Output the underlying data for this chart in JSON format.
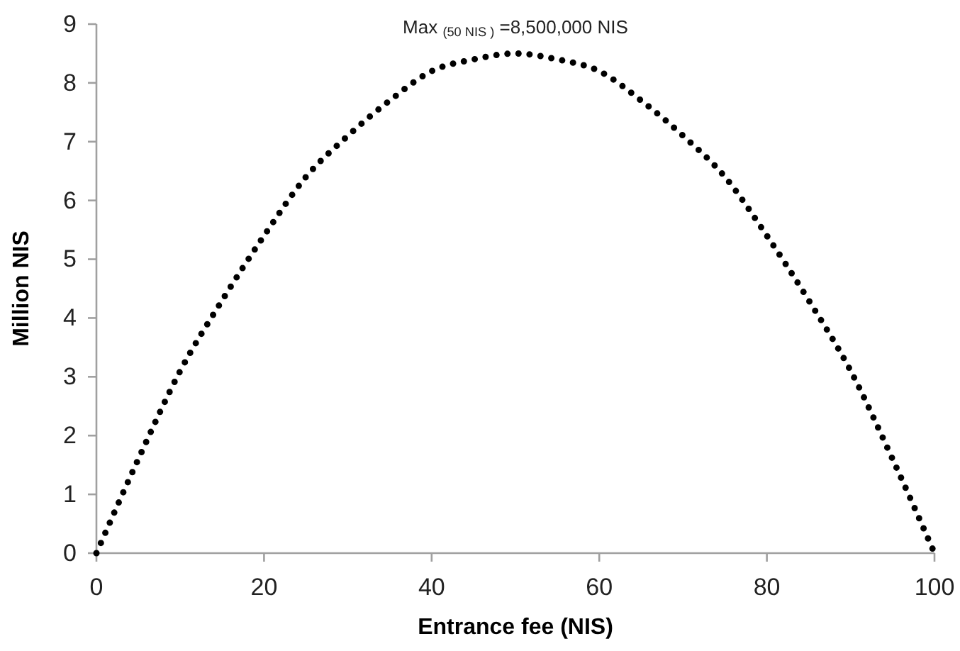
{
  "chart_data": {
    "type": "line",
    "xlabel": "Entrance fee (NIS)",
    "ylabel": "Million NIS",
    "annotations": [
      {
        "text": "Max $_{(50 NIS )}$ =8,500,000 NIS",
        "x": 50,
        "y": 8.5
      }
    ],
    "x": [
      0,
      5,
      10,
      15,
      20,
      25,
      30,
      35,
      40,
      45,
      50,
      55,
      60,
      65,
      70,
      75,
      80,
      85,
      90,
      95,
      100
    ],
    "series": [
      {
        "color": "#000000",
        "values": [
          0,
          1.6,
          3.1,
          4.3,
          5.4,
          6.4,
          7.1,
          7.7,
          8.2,
          8.4,
          8.5,
          8.4,
          8.2,
          7.7,
          7.1,
          6.4,
          5.4,
          4.3,
          3.1,
          1.6,
          0
        ]
      }
    ],
    "xlim": [
      0,
      100
    ],
    "xticks": [
      0,
      20,
      40,
      60,
      80,
      100
    ],
    "ylim": [
      0,
      9
    ],
    "yticks": [
      0,
      1,
      2,
      3,
      4,
      5,
      6,
      7,
      8,
      9
    ],
    "grid": false,
    "marker": "none",
    "line_style": "dotted"
  }
}
